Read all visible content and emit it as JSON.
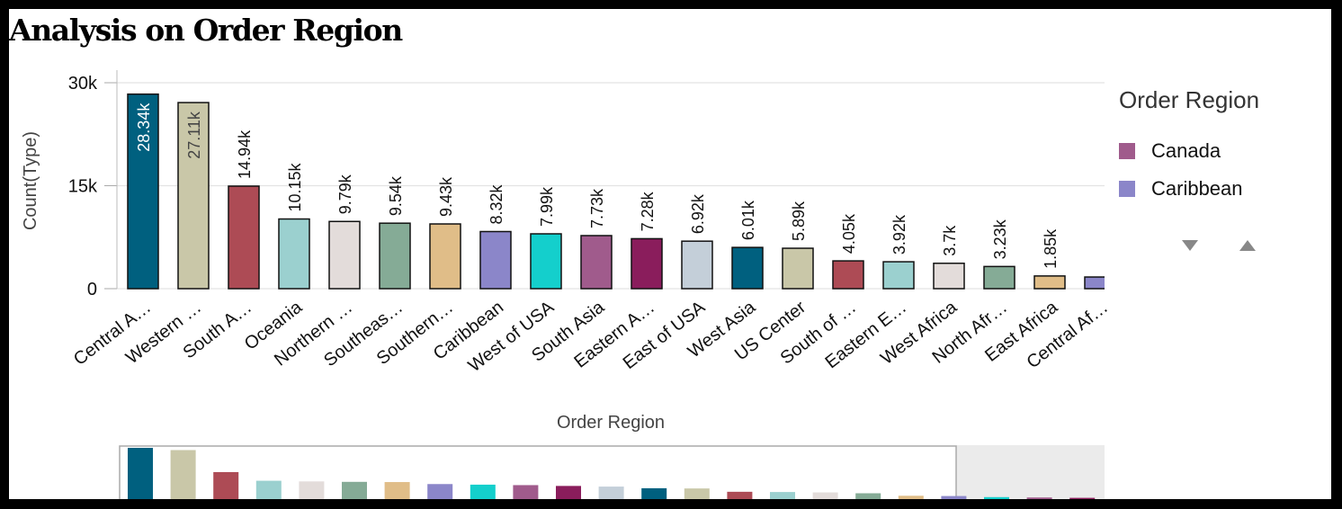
{
  "title": "Analysis on Order Region",
  "legend": {
    "title": "Order Region",
    "items": [
      {
        "label": "Canada",
        "color": "#a05b8c"
      },
      {
        "label": "Caribbean",
        "color": "#8b86c9"
      }
    ]
  },
  "chart_data": {
    "type": "bar",
    "title": "Analysis on Order Region",
    "xlabel": "Order Region",
    "ylabel": "Count(Type)",
    "ylim": [
      0,
      30000
    ],
    "yticks": [
      {
        "value": 0,
        "label": "0"
      },
      {
        "value": 15000,
        "label": "15k"
      },
      {
        "value": 30000,
        "label": "30k"
      }
    ],
    "grid": true,
    "legend_position": "right",
    "categories": [
      "Central A…",
      "Western …",
      "South A…",
      "Oceania",
      "Northern …",
      "Southeas…",
      "Southern…",
      "Caribbean",
      "West of USA",
      "South Asia",
      "Eastern A…",
      "East of USA",
      "West Asia",
      "US Center",
      "South of  …",
      "Eastern E…",
      "West Africa",
      "North Afr…",
      "East Africa",
      "Central Af…"
    ],
    "values": [
      28340,
      27110,
      14940,
      10150,
      9790,
      9540,
      9430,
      8320,
      7990,
      7730,
      7280,
      6920,
      6010,
      5890,
      4050,
      3920,
      3700,
      3230,
      1850,
      1700
    ],
    "value_labels": [
      "28.34k",
      "27.11k",
      "14.94k",
      "10.15k",
      "9.79k",
      "9.54k",
      "9.43k",
      "8.32k",
      "7.99k",
      "7.73k",
      "7.28k",
      "6.92k",
      "6.01k",
      "5.89k",
      "4.05k",
      "3.92k",
      "3.7k",
      "3.23k",
      "1.85k",
      ""
    ],
    "colors": [
      "#00607f",
      "#c9c7a8",
      "#ad4b55",
      "#9bd0cf",
      "#e3dcda",
      "#85ab96",
      "#e0bd88",
      "#8b86c9",
      "#14cfcc",
      "#a05b8c",
      "#8a1d5c",
      "#c4cfd9",
      "#00607f",
      "#c9c7a8",
      "#ad4b55",
      "#9bd0cf",
      "#e3dcda",
      "#85ab96",
      "#e0bd88",
      "#8b86c9"
    ],
    "overview_values": [
      28340,
      27110,
      14940,
      10150,
      9790,
      9540,
      9430,
      8320,
      7990,
      7730,
      7280,
      6920,
      6010,
      5890,
      4050,
      3920,
      3700,
      3230,
      1850,
      1700,
      1100,
      900,
      700
    ],
    "overview_colors": [
      "#00607f",
      "#c9c7a8",
      "#ad4b55",
      "#9bd0cf",
      "#e3dcda",
      "#85ab96",
      "#e0bd88",
      "#8b86c9",
      "#14cfcc",
      "#a05b8c",
      "#8a1d5c",
      "#c4cfd9",
      "#00607f",
      "#c9c7a8",
      "#ad4b55",
      "#9bd0cf",
      "#e3dcda",
      "#85ab96",
      "#e0bd88",
      "#8b86c9",
      "#14cfcc",
      "#a05b8c",
      "#8a1d5c"
    ]
  }
}
